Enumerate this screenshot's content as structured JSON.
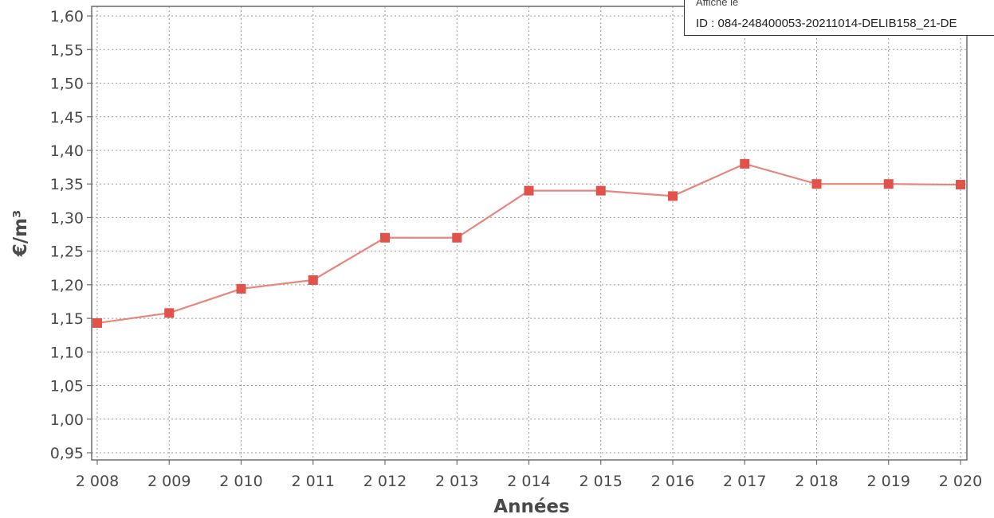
{
  "stamp": {
    "line1": "Affiché le",
    "id": "ID : 084-248400053-20211014-DELIB158_21-DE"
  },
  "chart_data": {
    "type": "line",
    "title": "",
    "xlabel": "Années",
    "ylabel": "€/m³",
    "categories": [
      "2 008",
      "2 009",
      "2 010",
      "2 011",
      "2 012",
      "2 013",
      "2 014",
      "2 015",
      "2 016",
      "2 017",
      "2 018",
      "2 019",
      "2 020"
    ],
    "series": [
      {
        "values": [
          1.143,
          1.158,
          1.194,
          1.207,
          1.27,
          1.27,
          1.34,
          1.34,
          1.332,
          1.38,
          1.35,
          1.35,
          1.349
        ],
        "color": "#e0524a"
      }
    ],
    "ylim": [
      0.95,
      1.61
    ],
    "yticks": [
      "0,95",
      "1,00",
      "1,05",
      "1,10",
      "1,15",
      "1,20",
      "1,25",
      "1,30",
      "1,35",
      "1,40",
      "1,45",
      "1,50",
      "1,55",
      "1,60"
    ],
    "yticks_values": [
      0.95,
      1.0,
      1.05,
      1.1,
      1.15,
      1.2,
      1.25,
      1.3,
      1.35,
      1.4,
      1.45,
      1.5,
      1.55,
      1.6
    ],
    "grid": true,
    "legend": "none",
    "line_color": "#e8857c",
    "marker_color": "#e0524a",
    "grid_color": "#9a9a9a"
  }
}
